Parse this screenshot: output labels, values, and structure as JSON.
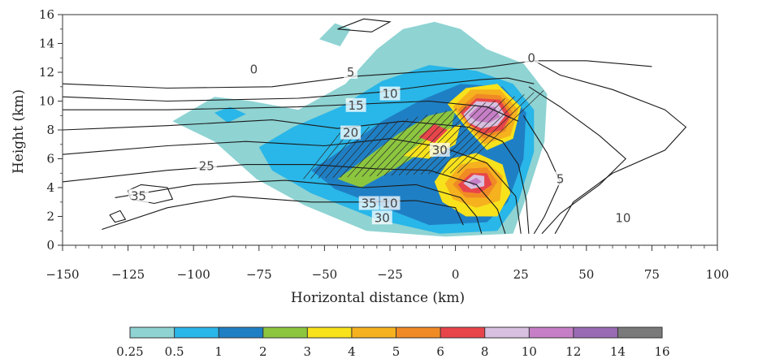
{
  "chart_data": {
    "type": "heatmap",
    "title": "",
    "xlabel": "Horizontal distance (km)",
    "ylabel": "Height (km)",
    "xlim": [
      -150,
      100
    ],
    "ylim": [
      0,
      16
    ],
    "x_ticks": [
      -150,
      -125,
      -100,
      -75,
      -50,
      -25,
      0,
      25,
      50,
      75,
      100
    ],
    "y_ticks": [
      0,
      2,
      4,
      6,
      8,
      10,
      12,
      14,
      16
    ],
    "colorbar": {
      "levels": [
        "0.25",
        "0.5",
        "1",
        "2",
        "3",
        "4",
        "5",
        "6",
        "8",
        "10",
        "12",
        "14",
        "16"
      ],
      "colors": [
        "#8fd3d3",
        "#29b6e8",
        "#1f7fc4",
        "#8cc63f",
        "#f7e21b",
        "#f6b11e",
        "#f08a24",
        "#e8454a",
        "#d8c0e0",
        "#c67fc6",
        "#9a6bb5",
        "#7a7a7a"
      ]
    },
    "contours": [
      {
        "label": "0",
        "x": -77,
        "y": 12.2
      },
      {
        "label": "0",
        "x": 29,
        "y": 13.0
      },
      {
        "label": "5",
        "x": -40,
        "y": 12.0
      },
      {
        "label": "10",
        "x": -25,
        "y": 10.5
      },
      {
        "label": "15",
        "x": -38,
        "y": 9.7
      },
      {
        "label": "20",
        "x": -40,
        "y": 7.8
      },
      {
        "label": "25",
        "x": -95,
        "y": 5.5
      },
      {
        "label": "30",
        "x": -6,
        "y": 6.6
      },
      {
        "label": "35",
        "x": -121,
        "y": 3.4
      },
      {
        "label": "35",
        "x": -33,
        "y": 2.9
      },
      {
        "label": "5",
        "x": 40,
        "y": 4.6
      },
      {
        "label": "10",
        "x": -25,
        "y": 2.9
      },
      {
        "label": "30",
        "x": -28,
        "y": 1.9
      },
      {
        "label": "10",
        "x": 64,
        "y": 1.9
      }
    ]
  }
}
